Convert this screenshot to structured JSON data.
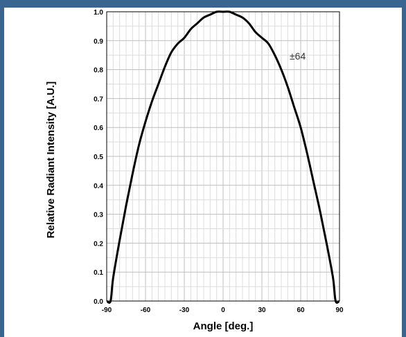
{
  "chart_data": {
    "type": "line",
    "xlabel": "Angle [deg.]",
    "ylabel": "Relative Radiant Intensity [A.U.]",
    "annotation": "±64",
    "xlim": [
      -90,
      90
    ],
    "ylim": [
      0.0,
      1.0
    ],
    "x_ticks": [
      "-90",
      "-60",
      "-30",
      "0",
      "30",
      "60",
      "90"
    ],
    "y_ticks": [
      "0.0",
      "0.1",
      "0.2",
      "0.3",
      "0.4",
      "0.5",
      "0.6",
      "0.7",
      "0.8",
      "0.9",
      "1.0"
    ],
    "grid": true,
    "series": [
      {
        "x": [
          -90,
          -87,
          -85,
          -80,
          -75,
          -70,
          -65,
          -60,
          -55,
          -50,
          -45,
          -40,
          -35,
          -30,
          -25,
          -20,
          -15,
          -10,
          -5,
          0,
          5,
          10,
          15,
          20,
          25,
          30,
          35,
          40,
          45,
          50,
          55,
          60,
          65,
          70,
          75,
          80,
          85,
          87,
          90
        ],
        "y": [
          0.0,
          0.0,
          0.08,
          0.21,
          0.33,
          0.44,
          0.54,
          0.62,
          0.69,
          0.75,
          0.81,
          0.86,
          0.89,
          0.91,
          0.94,
          0.96,
          0.98,
          0.99,
          1.0,
          1.0,
          1.0,
          0.99,
          0.98,
          0.96,
          0.93,
          0.91,
          0.89,
          0.85,
          0.8,
          0.74,
          0.67,
          0.6,
          0.51,
          0.41,
          0.31,
          0.2,
          0.08,
          0.0,
          0.0
        ]
      }
    ]
  }
}
